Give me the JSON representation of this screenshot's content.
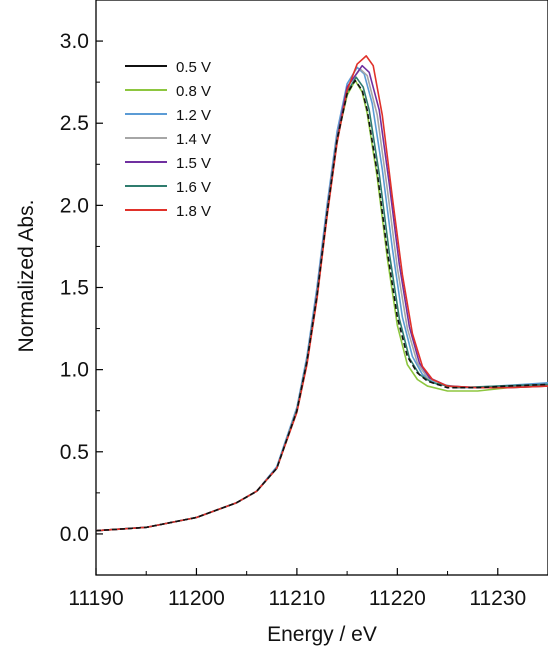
{
  "chart_data": {
    "type": "line",
    "title": "",
    "xlabel": "Energy / eV",
    "ylabel": "Normalized Abs.",
    "xlim": [
      11190,
      11235
    ],
    "ylim": [
      -0.25,
      3.25
    ],
    "x_ticks": [
      11190,
      11200,
      11210,
      11220,
      11230
    ],
    "x_tick_labels": [
      "11190",
      "11200",
      "11210",
      "11220",
      "11230"
    ],
    "y_ticks": [
      0.0,
      0.5,
      1.0,
      1.5,
      2.0,
      2.5,
      3.0
    ],
    "y_tick_labels": [
      "0.0",
      "0.5",
      "1.0",
      "1.5",
      "2.0",
      "2.5",
      "3.0"
    ],
    "grid": false,
    "legend_position": "top-left",
    "series": [
      {
        "name": "0.5 V",
        "color": "#111111",
        "dashed": true,
        "points": [
          [
            11190,
            0.02
          ],
          [
            11195,
            0.04
          ],
          [
            11200,
            0.1
          ],
          [
            11204,
            0.19
          ],
          [
            11206,
            0.26
          ],
          [
            11208,
            0.4
          ],
          [
            11210,
            0.75
          ],
          [
            11211,
            1.05
          ],
          [
            11212,
            1.45
          ],
          [
            11213,
            1.95
          ],
          [
            11214,
            2.4
          ],
          [
            11215,
            2.68
          ],
          [
            11215.8,
            2.76
          ],
          [
            11216.5,
            2.7
          ],
          [
            11217,
            2.58
          ],
          [
            11218,
            2.2
          ],
          [
            11219,
            1.72
          ],
          [
            11220,
            1.32
          ],
          [
            11221,
            1.08
          ],
          [
            11222,
            0.98
          ],
          [
            11223,
            0.93
          ],
          [
            11225,
            0.89
          ],
          [
            11228,
            0.89
          ],
          [
            11231,
            0.9
          ],
          [
            11235,
            0.91
          ]
        ]
      },
      {
        "name": "0.8 V",
        "color": "#8dc63f",
        "dashed": false,
        "points": [
          [
            11190,
            0.02
          ],
          [
            11195,
            0.04
          ],
          [
            11200,
            0.1
          ],
          [
            11204,
            0.19
          ],
          [
            11206,
            0.26
          ],
          [
            11208,
            0.4
          ],
          [
            11210,
            0.75
          ],
          [
            11211,
            1.05
          ],
          [
            11212,
            1.45
          ],
          [
            11213,
            1.95
          ],
          [
            11214,
            2.4
          ],
          [
            11215,
            2.67
          ],
          [
            11215.8,
            2.76
          ],
          [
            11216.5,
            2.69
          ],
          [
            11217,
            2.56
          ],
          [
            11218,
            2.17
          ],
          [
            11219,
            1.68
          ],
          [
            11220,
            1.27
          ],
          [
            11221,
            1.03
          ],
          [
            11222,
            0.94
          ],
          [
            11223,
            0.9
          ],
          [
            11225,
            0.87
          ],
          [
            11228,
            0.87
          ],
          [
            11231,
            0.89
          ],
          [
            11235,
            0.9
          ]
        ]
      },
      {
        "name": "1.2 V",
        "color": "#5b9bd5",
        "dashed": false,
        "points": [
          [
            11190,
            0.02
          ],
          [
            11195,
            0.04
          ],
          [
            11200,
            0.1
          ],
          [
            11204,
            0.19
          ],
          [
            11206,
            0.26
          ],
          [
            11208,
            0.41
          ],
          [
            11210,
            0.77
          ],
          [
            11211,
            1.08
          ],
          [
            11212,
            1.5
          ],
          [
            11213,
            2.0
          ],
          [
            11214,
            2.45
          ],
          [
            11215,
            2.74
          ],
          [
            11216,
            2.84
          ],
          [
            11216.7,
            2.8
          ],
          [
            11217.5,
            2.62
          ],
          [
            11218.5,
            2.22
          ],
          [
            11219.5,
            1.74
          ],
          [
            11220.5,
            1.32
          ],
          [
            11221.5,
            1.08
          ],
          [
            11222.5,
            0.97
          ],
          [
            11224,
            0.91
          ],
          [
            11227,
            0.89
          ],
          [
            11230,
            0.9
          ],
          [
            11235,
            0.92
          ]
        ]
      },
      {
        "name": "1.4 V",
        "color": "#a6a6a6",
        "dashed": false,
        "points": [
          [
            11190,
            0.02
          ],
          [
            11195,
            0.04
          ],
          [
            11200,
            0.1
          ],
          [
            11204,
            0.19
          ],
          [
            11206,
            0.26
          ],
          [
            11208,
            0.4
          ],
          [
            11210,
            0.76
          ],
          [
            11211,
            1.06
          ],
          [
            11212,
            1.47
          ],
          [
            11213,
            1.97
          ],
          [
            11214,
            2.42
          ],
          [
            11215,
            2.72
          ],
          [
            11216.3,
            2.83
          ],
          [
            11217,
            2.79
          ],
          [
            11218,
            2.55
          ],
          [
            11219,
            2.1
          ],
          [
            11220,
            1.62
          ],
          [
            11221,
            1.25
          ],
          [
            11222,
            1.04
          ],
          [
            11223,
            0.95
          ],
          [
            11225,
            0.9
          ],
          [
            11228,
            0.89
          ],
          [
            11231,
            0.9
          ],
          [
            11235,
            0.91
          ]
        ]
      },
      {
        "name": "1.5 V",
        "color": "#7030a0",
        "dashed": false,
        "points": [
          [
            11190,
            0.02
          ],
          [
            11195,
            0.04
          ],
          [
            11200,
            0.1
          ],
          [
            11204,
            0.19
          ],
          [
            11206,
            0.26
          ],
          [
            11208,
            0.4
          ],
          [
            11210,
            0.75
          ],
          [
            11211,
            1.05
          ],
          [
            11212,
            1.46
          ],
          [
            11213,
            1.96
          ],
          [
            11214,
            2.41
          ],
          [
            11215,
            2.72
          ],
          [
            11216.5,
            2.85
          ],
          [
            11217.2,
            2.81
          ],
          [
            11218.2,
            2.58
          ],
          [
            11219.2,
            2.13
          ],
          [
            11220.2,
            1.64
          ],
          [
            11221.2,
            1.26
          ],
          [
            11222.2,
            1.04
          ],
          [
            11223.2,
            0.95
          ],
          [
            11225,
            0.9
          ],
          [
            11228,
            0.89
          ],
          [
            11231,
            0.89
          ],
          [
            11235,
            0.9
          ]
        ]
      },
      {
        "name": "1.6 V",
        "color": "#2f7c6e",
        "dashed": false,
        "points": [
          [
            11190,
            0.02
          ],
          [
            11195,
            0.04
          ],
          [
            11200,
            0.1
          ],
          [
            11204,
            0.19
          ],
          [
            11206,
            0.26
          ],
          [
            11208,
            0.4
          ],
          [
            11210,
            0.75
          ],
          [
            11211,
            1.05
          ],
          [
            11212,
            1.45
          ],
          [
            11213,
            1.95
          ],
          [
            11214,
            2.4
          ],
          [
            11215,
            2.69
          ],
          [
            11215.9,
            2.78
          ],
          [
            11216.6,
            2.72
          ],
          [
            11217.2,
            2.58
          ],
          [
            11218.2,
            2.19
          ],
          [
            11219.2,
            1.71
          ],
          [
            11220.2,
            1.31
          ],
          [
            11221.2,
            1.07
          ],
          [
            11222.2,
            0.97
          ],
          [
            11223.5,
            0.92
          ],
          [
            11226,
            0.89
          ],
          [
            11230,
            0.9
          ],
          [
            11235,
            0.91
          ]
        ]
      },
      {
        "name": "1.8 V",
        "color": "#e0312a",
        "dashed": false,
        "points": [
          [
            11190,
            0.02
          ],
          [
            11195,
            0.04
          ],
          [
            11200,
            0.1
          ],
          [
            11204,
            0.19
          ],
          [
            11206,
            0.26
          ],
          [
            11208,
            0.4
          ],
          [
            11210,
            0.74
          ],
          [
            11211,
            1.03
          ],
          [
            11212,
            1.43
          ],
          [
            11213,
            1.93
          ],
          [
            11214,
            2.38
          ],
          [
            11215,
            2.7
          ],
          [
            11216,
            2.86
          ],
          [
            11216.9,
            2.91
          ],
          [
            11217.6,
            2.85
          ],
          [
            11218.5,
            2.55
          ],
          [
            11219.5,
            2.05
          ],
          [
            11220.5,
            1.58
          ],
          [
            11221.5,
            1.22
          ],
          [
            11222.5,
            1.02
          ],
          [
            11223.5,
            0.94
          ],
          [
            11225,
            0.9
          ],
          [
            11228,
            0.89
          ],
          [
            11231,
            0.89
          ],
          [
            11235,
            0.9
          ]
        ]
      }
    ]
  }
}
